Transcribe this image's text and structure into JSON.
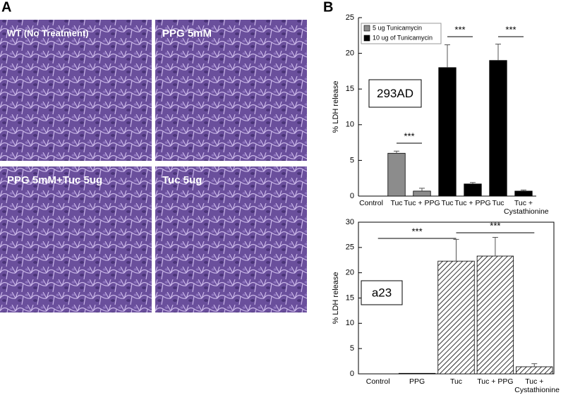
{
  "panels": {
    "a": {
      "label": "A",
      "images": [
        "WT (No Treatment)",
        "PPG 5mM",
        "PPG 5mM+Tuc 5ug",
        "Tuc 5ug"
      ]
    },
    "b": {
      "label": "B"
    }
  },
  "chart_data": [
    {
      "type": "bar",
      "box_label": "293AD",
      "y_label": "% LDH release",
      "categories": [
        "Control",
        "Tuc",
        "Tuc + PPG",
        "Tuc",
        "Tuc + PPG",
        "Tuc",
        "Tuc + Cystathionine"
      ],
      "series": [
        {
          "name": "5 ug Tunicamycin",
          "color": "#8c8c8c",
          "values": [
            0,
            6,
            0.7,
            null,
            null,
            null,
            null
          ],
          "errors": [
            null,
            0.3,
            0.4,
            null,
            null,
            null,
            null
          ]
        },
        {
          "name": "10 ug of Tunicamycin",
          "color": "#000000",
          "values": [
            null,
            null,
            null,
            18,
            1.7,
            19,
            0.7
          ],
          "errors": [
            null,
            null,
            null,
            3.2,
            0.2,
            2.3,
            0.15
          ]
        }
      ],
      "annotations": [
        "***",
        "***",
        "***"
      ],
      "ylim": [
        0,
        25
      ],
      "yticks": [
        0,
        5,
        10,
        15,
        20,
        25
      ],
      "legend": "top-left"
    },
    {
      "type": "bar",
      "box_label": "a23",
      "y_label": "% LDH release",
      "categories": [
        "Control",
        "PPG",
        "Tuc",
        "Tuc + PPG",
        "Tuc + Cystathionine"
      ],
      "values": [
        0,
        0.1,
        22.3,
        23.3,
        1.4
      ],
      "errors": [
        null,
        null,
        4.3,
        3.7,
        0.6
      ],
      "color": "#000000",
      "hatch": true,
      "annotations": [
        "***",
        "***"
      ],
      "ylim": [
        0,
        30
      ],
      "yticks": [
        0,
        5,
        10,
        15,
        20,
        25,
        30
      ]
    }
  ]
}
